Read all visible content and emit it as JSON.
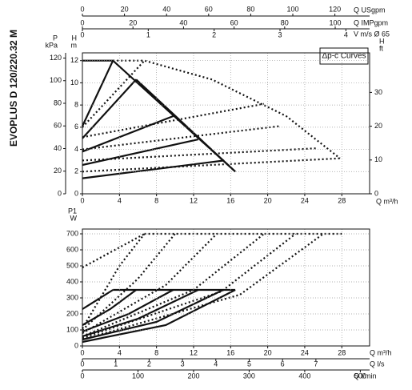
{
  "title": "EVOPLUS D 120/220.32 M",
  "chart_data": [
    {
      "type": "line",
      "annotation": "Δp-c Curves",
      "grid": true,
      "x_label": "Q m³/h",
      "xlim": [
        0,
        31
      ],
      "xticks": [
        0,
        4,
        8,
        12,
        16,
        20,
        24,
        28
      ],
      "y_label": [
        "H",
        "m"
      ],
      "ylim": [
        0,
        12.7
      ],
      "yticks": [
        0,
        2,
        4,
        6,
        8,
        10,
        12
      ],
      "extra_axes": [
        {
          "label": "Q USgpm",
          "side": "top",
          "lim": [
            0,
            136.5
          ],
          "ticks": [
            0,
            20,
            40,
            60,
            80,
            100,
            120
          ]
        },
        {
          "label": "Q IMPgpm",
          "side": "top",
          "lim": [
            0,
            113.6
          ],
          "ticks": [
            0,
            20,
            40,
            60,
            80,
            100
          ]
        },
        {
          "label": "V m/s Ø 65",
          "side": "top",
          "lim": [
            0,
            4.36
          ],
          "ticks": [
            0,
            1,
            2,
            3,
            4
          ]
        },
        {
          "label": [
            "P",
            "kPa"
          ],
          "side": "left",
          "lim": [
            0,
            124.6
          ],
          "ticks": [
            0,
            20,
            40,
            60,
            80,
            100,
            120
          ]
        },
        {
          "label": [
            "H",
            "ft"
          ],
          "side": "right",
          "lim": [
            0,
            41.7
          ],
          "ticks": [
            0,
            10,
            20,
            30
          ]
        }
      ],
      "series": [
        {
          "style": "solid",
          "x": [
            0,
            3.3,
            16.5
          ],
          "values": [
            12,
            12,
            2
          ]
        },
        {
          "style": "solid",
          "x": [
            5.8,
            16.5
          ],
          "values": [
            10.3,
            2
          ]
        },
        {
          "style": "solid",
          "x": [
            0,
            3.3
          ],
          "values": [
            6.1,
            12
          ]
        },
        {
          "style": "solid",
          "x": [
            0,
            5.8
          ],
          "values": [
            5,
            10.3
          ]
        },
        {
          "style": "solid",
          "x": [
            0,
            9.8
          ],
          "values": [
            3.8,
            7
          ]
        },
        {
          "style": "solid",
          "x": [
            0,
            12.5
          ],
          "values": [
            2.6,
            4.9
          ]
        },
        {
          "style": "solid",
          "x": [
            0,
            15.3
          ],
          "values": [
            1.4,
            3
          ]
        },
        {
          "style": "dotted",
          "x": [
            0,
            6.7
          ],
          "values": [
            6,
            12
          ]
        },
        {
          "style": "dotted",
          "x": [
            3.3,
            6.7,
            14,
            22,
            27.8
          ],
          "values": [
            12,
            12,
            10.3,
            7,
            3.2
          ]
        },
        {
          "style": "dotted",
          "x": [
            0,
            19.6
          ],
          "values": [
            5.1,
            8.1
          ]
        },
        {
          "style": "dotted",
          "x": [
            0,
            21.3
          ],
          "values": [
            4,
            6.1
          ]
        },
        {
          "style": "dotted",
          "x": [
            0,
            25.2
          ],
          "values": [
            3,
            4.1
          ]
        },
        {
          "style": "dotted",
          "x": [
            0,
            27.8
          ],
          "values": [
            2,
            3.2
          ]
        }
      ]
    },
    {
      "type": "line",
      "grid": true,
      "x_label": "Q m³/h",
      "xlim": [
        0,
        31
      ],
      "xticks": [
        0,
        4,
        8,
        12,
        16,
        20,
        24,
        28
      ],
      "y_label": [
        "P1",
        "W"
      ],
      "ylim": [
        0,
        730
      ],
      "yticks": [
        0,
        100,
        200,
        300,
        400,
        500,
        600,
        700
      ],
      "extra_axes": [
        {
          "label": "Q l/s",
          "side": "bottom",
          "lim": [
            0,
            8.61
          ],
          "ticks": [
            0,
            1,
            2,
            3,
            4,
            5,
            6,
            7
          ]
        },
        {
          "label": "Q l/min",
          "side": "bottom",
          "lim": [
            0,
            516.7
          ],
          "ticks": [
            0,
            100,
            200,
            300,
            400,
            500
          ]
        }
      ],
      "series": [
        {
          "style": "solid",
          "x": [
            3.3,
            16.5
          ],
          "values": [
            350,
            350
          ]
        },
        {
          "style": "solid",
          "x": [
            0,
            3.3
          ],
          "values": [
            230,
            350
          ]
        },
        {
          "style": "solid",
          "x": [
            0,
            3,
            5.8
          ],
          "values": [
            130,
            230,
            350
          ]
        },
        {
          "style": "solid",
          "x": [
            0,
            5,
            9.8
          ],
          "values": [
            90,
            200,
            350
          ]
        },
        {
          "style": "solid",
          "x": [
            0,
            6,
            12.5
          ],
          "values": [
            60,
            170,
            350
          ]
        },
        {
          "style": "solid",
          "x": [
            0,
            8,
            15.2
          ],
          "values": [
            40,
            150,
            350
          ]
        },
        {
          "style": "solid",
          "x": [
            0,
            9,
            16.5
          ],
          "values": [
            25,
            130,
            350
          ]
        },
        {
          "style": "dotted",
          "x": [
            6.7,
            28
          ],
          "values": [
            700,
            700
          ]
        },
        {
          "style": "dotted",
          "x": [
            0,
            6.7
          ],
          "values": [
            490,
            700
          ]
        },
        {
          "style": "dotted",
          "x": [
            0,
            4,
            6.7
          ],
          "values": [
            110,
            500,
            700
          ]
        },
        {
          "style": "dotted",
          "x": [
            0,
            6,
            10
          ],
          "values": [
            100,
            420,
            700
          ]
        },
        {
          "style": "dotted",
          "x": [
            0,
            9,
            14.5
          ],
          "values": [
            80,
            380,
            700
          ]
        },
        {
          "style": "dotted",
          "x": [
            0,
            12,
            19.6
          ],
          "values": [
            60,
            350,
            700
          ]
        },
        {
          "style": "dotted",
          "x": [
            0,
            15,
            23
          ],
          "values": [
            50,
            340,
            700
          ]
        },
        {
          "style": "dotted",
          "x": [
            0,
            17,
            26
          ],
          "values": [
            40,
            320,
            700
          ]
        }
      ]
    }
  ]
}
